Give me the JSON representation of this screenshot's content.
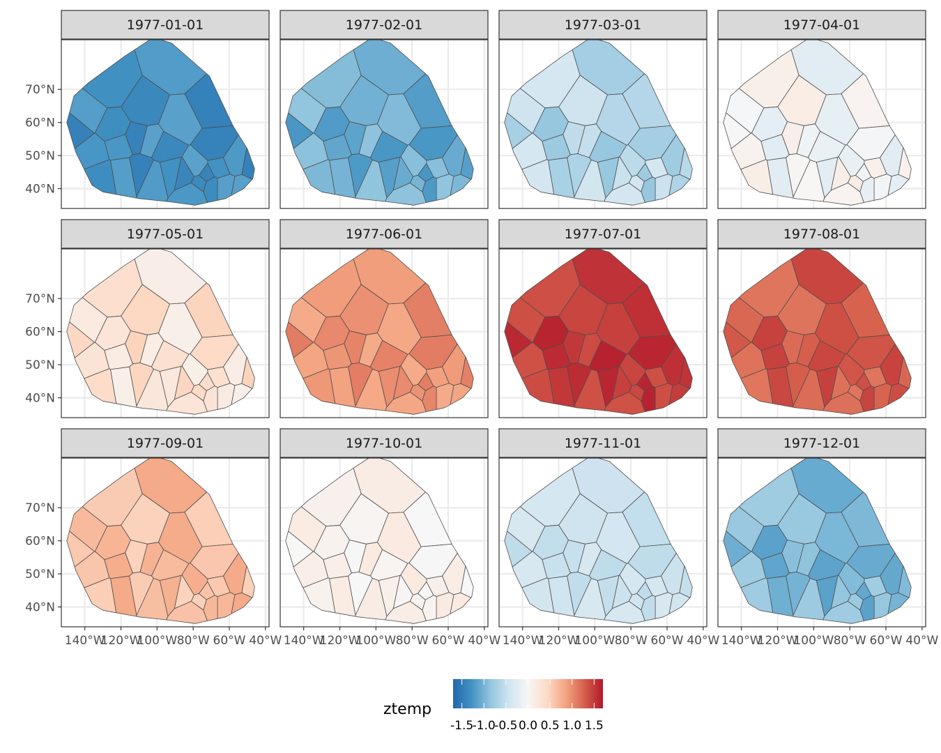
{
  "chart_data": {
    "type": "heatmap",
    "subtype": "faceted voronoi choropleth map",
    "facet_labels": [
      "1977-01-01",
      "1977-02-01",
      "1977-03-01",
      "1977-04-01",
      "1977-05-01",
      "1977-06-01",
      "1977-07-01",
      "1977-08-01",
      "1977-09-01",
      "1977-10-01",
      "1977-11-01",
      "1977-12-01"
    ],
    "facet_grid": {
      "columns": 4,
      "rows": 3
    },
    "x_axis": {
      "ticks": [
        -140,
        -120,
        -100,
        -80,
        -60,
        -40
      ],
      "tick_labels": [
        "140°W",
        "120°W",
        "100°W",
        "80°W",
        "60°W",
        "40°W"
      ],
      "range": [
        -153,
        -38
      ]
    },
    "y_axis": {
      "ticks": [
        40,
        50,
        60,
        70
      ],
      "tick_labels": [
        "40°N",
        "50°N",
        "60°N",
        "70°N"
      ],
      "range": [
        34,
        85
      ]
    },
    "grid": true,
    "fill_variable": "ztemp",
    "legend": {
      "title": "ztemp",
      "placement": "bottom",
      "ticks": [
        -1.5,
        -1.0,
        -0.5,
        0.0,
        0.5,
        1.0,
        1.5
      ],
      "tick_labels": [
        "-1.5",
        "-1.0",
        "-0.5",
        "0.0",
        "0.5",
        "1.0",
        "1.5"
      ],
      "range": [
        -1.7,
        1.7
      ]
    },
    "colors": {
      "palette": [
        "#2166ac",
        "#4393c3",
        "#92c5de",
        "#d1e5f0",
        "#f7f7f7",
        "#fddbc7",
        "#f4a582",
        "#d6604d",
        "#b2182b"
      ],
      "polygon_stroke": "#4d4d4d",
      "strip_fill": "#d9d9d9",
      "panel_border": "#333333",
      "gridline": "#ebebeb"
    },
    "monthly_mean_ztemp": [
      -1.3,
      -1.05,
      -0.6,
      -0.05,
      0.3,
      0.95,
      1.5,
      1.3,
      0.65,
      0.1,
      -0.45,
      -0.95
    ],
    "monthly_spread": [
      0.15,
      0.2,
      0.22,
      0.2,
      0.18,
      0.15,
      0.14,
      0.16,
      0.16,
      0.1,
      0.1,
      0.2
    ],
    "stations": [
      {
        "lon": -126,
        "lat": 71
      },
      {
        "lon": -90,
        "lat": 77
      },
      {
        "lon": -70,
        "lat": 65
      },
      {
        "lon": -139,
        "lat": 62
      },
      {
        "lon": -124,
        "lat": 58
      },
      {
        "lon": -107,
        "lat": 64
      },
      {
        "lon": -88,
        "lat": 60
      },
      {
        "lon": -68,
        "lat": 52
      },
      {
        "lon": -135,
        "lat": 51
      },
      {
        "lon": -121,
        "lat": 53
      },
      {
        "lon": -111,
        "lat": 55
      },
      {
        "lon": -104,
        "lat": 54
      },
      {
        "lon": -96,
        "lat": 52
      },
      {
        "lon": -130,
        "lat": 44
      },
      {
        "lon": -119,
        "lat": 45
      },
      {
        "lon": -109,
        "lat": 46
      },
      {
        "lon": -101,
        "lat": 44
      },
      {
        "lon": -93,
        "lat": 45
      },
      {
        "lon": -84,
        "lat": 44
      },
      {
        "lon": -78,
        "lat": 46
      },
      {
        "lon": -73,
        "lat": 44
      },
      {
        "lon": -66,
        "lat": 46
      },
      {
        "lon": -57,
        "lat": 48
      },
      {
        "lon": -47,
        "lat": 47
      },
      {
        "lon": -63,
        "lat": 41
      },
      {
        "lon": -70,
        "lat": 41
      },
      {
        "lon": -76,
        "lat": 42
      },
      {
        "lon": -53,
        "lat": 40
      },
      {
        "lon": -145,
        "lat": 58
      },
      {
        "lon": -80,
        "lat": 39
      }
    ]
  }
}
